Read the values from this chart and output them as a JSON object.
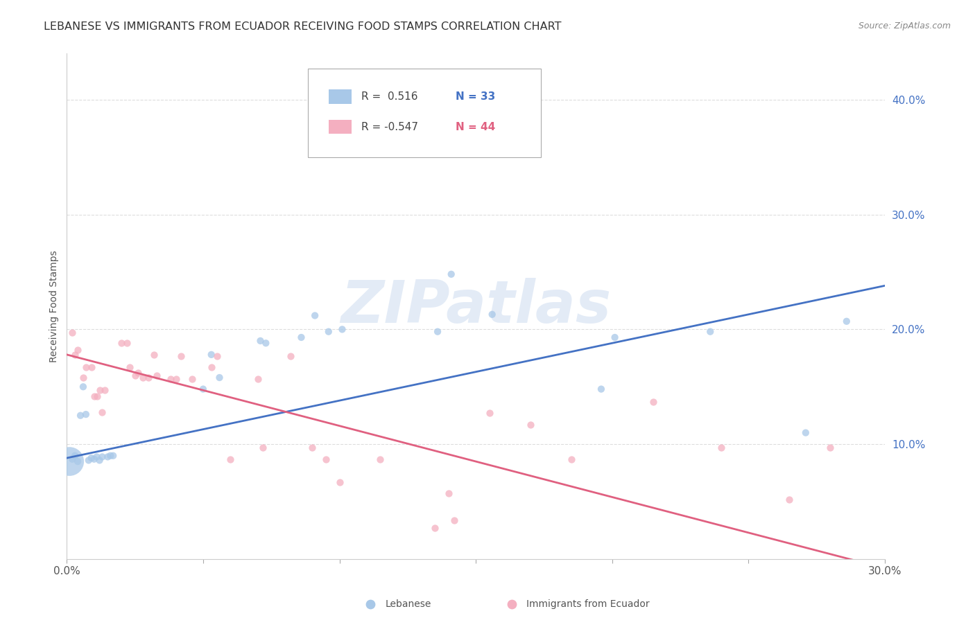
{
  "title": "LEBANESE VS IMMIGRANTS FROM ECUADOR RECEIVING FOOD STAMPS CORRELATION CHART",
  "source": "Source: ZipAtlas.com",
  "ylabel": "Receiving Food Stamps",
  "ytick_labels": [
    "10.0%",
    "20.0%",
    "30.0%",
    "40.0%"
  ],
  "ytick_values": [
    0.1,
    0.2,
    0.3,
    0.4
  ],
  "xlim": [
    0.0,
    0.3
  ],
  "ylim": [
    0.0,
    0.44
  ],
  "blue_color": "#a8c8e8",
  "pink_color": "#f4afc0",
  "blue_line_color": "#4472c4",
  "pink_line_color": "#e06080",
  "watermark_color": "#c8d8ee",
  "watermark": "ZIPatlas",
  "blue_scatter": [
    [
      0.001,
      0.085
    ],
    [
      0.002,
      0.087
    ],
    [
      0.003,
      0.09
    ],
    [
      0.004,
      0.085
    ],
    [
      0.005,
      0.125
    ],
    [
      0.006,
      0.15
    ],
    [
      0.007,
      0.126
    ],
    [
      0.008,
      0.086
    ],
    [
      0.009,
      0.088
    ],
    [
      0.01,
      0.087
    ],
    [
      0.011,
      0.089
    ],
    [
      0.012,
      0.086
    ],
    [
      0.013,
      0.089
    ],
    [
      0.015,
      0.089
    ],
    [
      0.016,
      0.09
    ],
    [
      0.017,
      0.09
    ],
    [
      0.05,
      0.148
    ],
    [
      0.053,
      0.178
    ],
    [
      0.056,
      0.158
    ],
    [
      0.071,
      0.19
    ],
    [
      0.073,
      0.188
    ],
    [
      0.086,
      0.193
    ],
    [
      0.091,
      0.212
    ],
    [
      0.096,
      0.198
    ],
    [
      0.101,
      0.2
    ],
    [
      0.136,
      0.198
    ],
    [
      0.141,
      0.248
    ],
    [
      0.156,
      0.213
    ],
    [
      0.196,
      0.148
    ],
    [
      0.201,
      0.193
    ],
    [
      0.236,
      0.198
    ],
    [
      0.271,
      0.11
    ],
    [
      0.286,
      0.207
    ]
  ],
  "blue_scatter_sizes": [
    900,
    55,
    55,
    55,
    55,
    55,
    55,
    55,
    55,
    55,
    55,
    55,
    55,
    55,
    55,
    55,
    55,
    55,
    55,
    55,
    55,
    55,
    55,
    55,
    55,
    55,
    55,
    55,
    55,
    55,
    55,
    55,
    55
  ],
  "pink_scatter": [
    [
      0.002,
      0.197
    ],
    [
      0.003,
      0.178
    ],
    [
      0.004,
      0.182
    ],
    [
      0.006,
      0.158
    ],
    [
      0.007,
      0.167
    ],
    [
      0.009,
      0.167
    ],
    [
      0.01,
      0.142
    ],
    [
      0.011,
      0.142
    ],
    [
      0.012,
      0.147
    ],
    [
      0.013,
      0.128
    ],
    [
      0.014,
      0.147
    ],
    [
      0.02,
      0.188
    ],
    [
      0.022,
      0.188
    ],
    [
      0.023,
      0.167
    ],
    [
      0.025,
      0.16
    ],
    [
      0.026,
      0.162
    ],
    [
      0.028,
      0.158
    ],
    [
      0.03,
      0.158
    ],
    [
      0.032,
      0.178
    ],
    [
      0.033,
      0.16
    ],
    [
      0.038,
      0.157
    ],
    [
      0.04,
      0.157
    ],
    [
      0.042,
      0.177
    ],
    [
      0.046,
      0.157
    ],
    [
      0.053,
      0.167
    ],
    [
      0.055,
      0.177
    ],
    [
      0.06,
      0.087
    ],
    [
      0.07,
      0.157
    ],
    [
      0.072,
      0.097
    ],
    [
      0.082,
      0.177
    ],
    [
      0.09,
      0.097
    ],
    [
      0.095,
      0.087
    ],
    [
      0.1,
      0.067
    ],
    [
      0.115,
      0.087
    ],
    [
      0.135,
      0.027
    ],
    [
      0.14,
      0.057
    ],
    [
      0.142,
      0.034
    ],
    [
      0.155,
      0.127
    ],
    [
      0.17,
      0.117
    ],
    [
      0.185,
      0.087
    ],
    [
      0.215,
      0.137
    ],
    [
      0.24,
      0.097
    ],
    [
      0.265,
      0.052
    ],
    [
      0.28,
      0.097
    ]
  ],
  "pink_scatter_size": 55,
  "blue_line": {
    "x0": 0.0,
    "x1": 0.3,
    "y0": 0.088,
    "y1": 0.238
  },
  "pink_line": {
    "x0": 0.0,
    "x1": 0.3,
    "y0": 0.178,
    "y1": -0.008
  },
  "grid_color": "#dddddd",
  "background_color": "#ffffff",
  "title_fontsize": 11.5,
  "axis_label_fontsize": 10,
  "tick_fontsize": 11,
  "source_fontsize": 9,
  "legend_r1": "R =  0.516",
  "legend_n1": "N = 33",
  "legend_r2": "R = -0.547",
  "legend_n2": "N = 44"
}
